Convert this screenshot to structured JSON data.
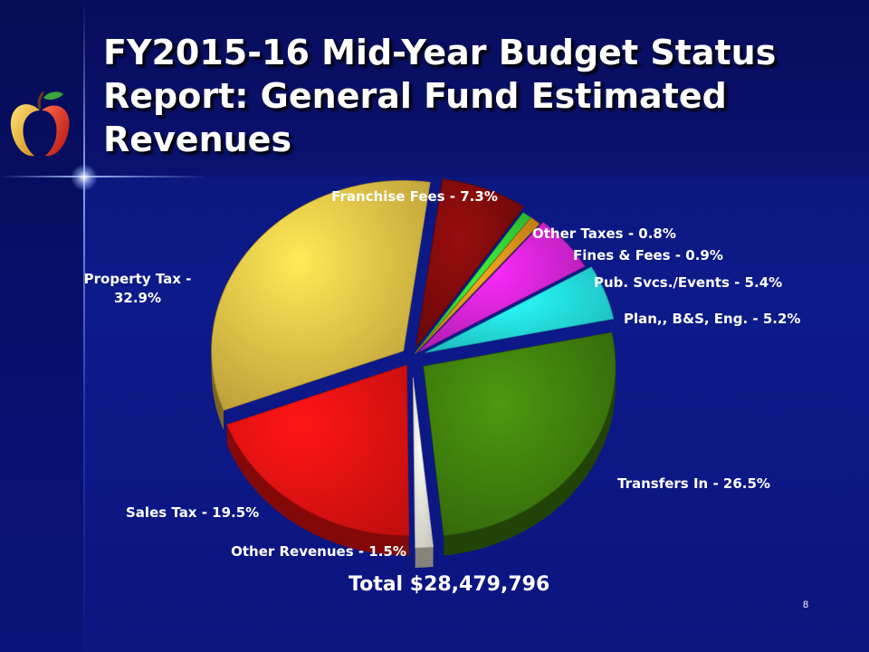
{
  "slide": {
    "title": "FY2015-16 Mid-Year Budget Status Report: General Fund Estimated Revenues",
    "total": "Total $28,479,796",
    "page_number": "8"
  },
  "colors": {
    "background": "#0c1580",
    "title_text": "#ffffff"
  },
  "chart_data": {
    "type": "pie",
    "style": "3d-exploded",
    "title": "",
    "slices": [
      {
        "label": "Franchise Fees - 7.3%",
        "value": 7.3,
        "color": "#7a0a0a"
      },
      {
        "label": "Other Taxes - 0.8%",
        "value": 0.8,
        "color": "#33cc33"
      },
      {
        "label": "Fines & Fees - 0.9%",
        "value": 0.9,
        "color": "#d98c1a"
      },
      {
        "label": "Pub. Svcs./Events - 5.4%",
        "value": 5.4,
        "color": "#cc22cc"
      },
      {
        "label": "Plan,, B&S, Eng. - 5.2%",
        "value": 5.2,
        "color": "#22dddd"
      },
      {
        "label": "Transfers In - 26.5%",
        "value": 26.5,
        "color": "#3d7a0c"
      },
      {
        "label": "Other Revenues - 1.5%",
        "value": 1.5,
        "color": "#f2f0e0"
      },
      {
        "label": "Sales Tax - 19.5%",
        "value": 19.5,
        "color": "#ee1111"
      },
      {
        "label": "Property Tax - 32.9%",
        "value": 32.9,
        "color": "#e0bb44"
      }
    ]
  }
}
